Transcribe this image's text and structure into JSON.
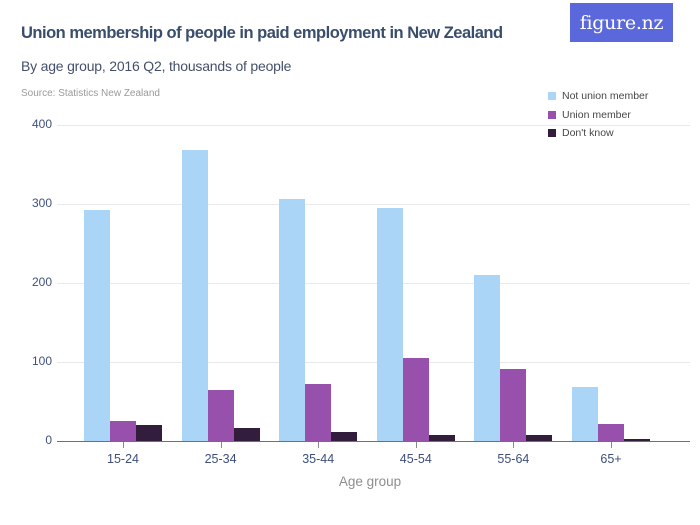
{
  "header": {
    "title": "Union membership of people in paid employment in New Zealand",
    "subtitle": "By age group, 2016 Q2, thousands of people",
    "source": "Source: Statistics New Zealand"
  },
  "logo": {
    "text": "figure.nz",
    "background_color": "#5b68dc",
    "text_color": "#ffffff"
  },
  "chart_data": {
    "type": "bar",
    "title": "Union membership of people in paid employment in New Zealand",
    "subtitle": "By age group, 2016 Q2, thousands of people",
    "categories": [
      "15-24",
      "25-34",
      "35-44",
      "45-54",
      "55-64",
      "65+"
    ],
    "series": [
      {
        "name": "Not union member",
        "color": "#abd5f7",
        "values": [
          293,
          368,
          306,
          295,
          210,
          68
        ]
      },
      {
        "name": "Union member",
        "color": "#9751ad",
        "values": [
          25,
          65,
          72,
          105,
          91,
          21
        ]
      },
      {
        "name": "Don't know",
        "color": "#321d3c",
        "values": [
          20,
          17,
          11,
          8,
          7,
          2
        ]
      }
    ],
    "xlabel": "Age group",
    "ylabel": "",
    "ylim": [
      0,
      400
    ],
    "yticks": [
      0,
      100,
      200,
      300,
      400
    ],
    "grid": true,
    "legend_position": "top-right",
    "units": "thousands of people"
  }
}
